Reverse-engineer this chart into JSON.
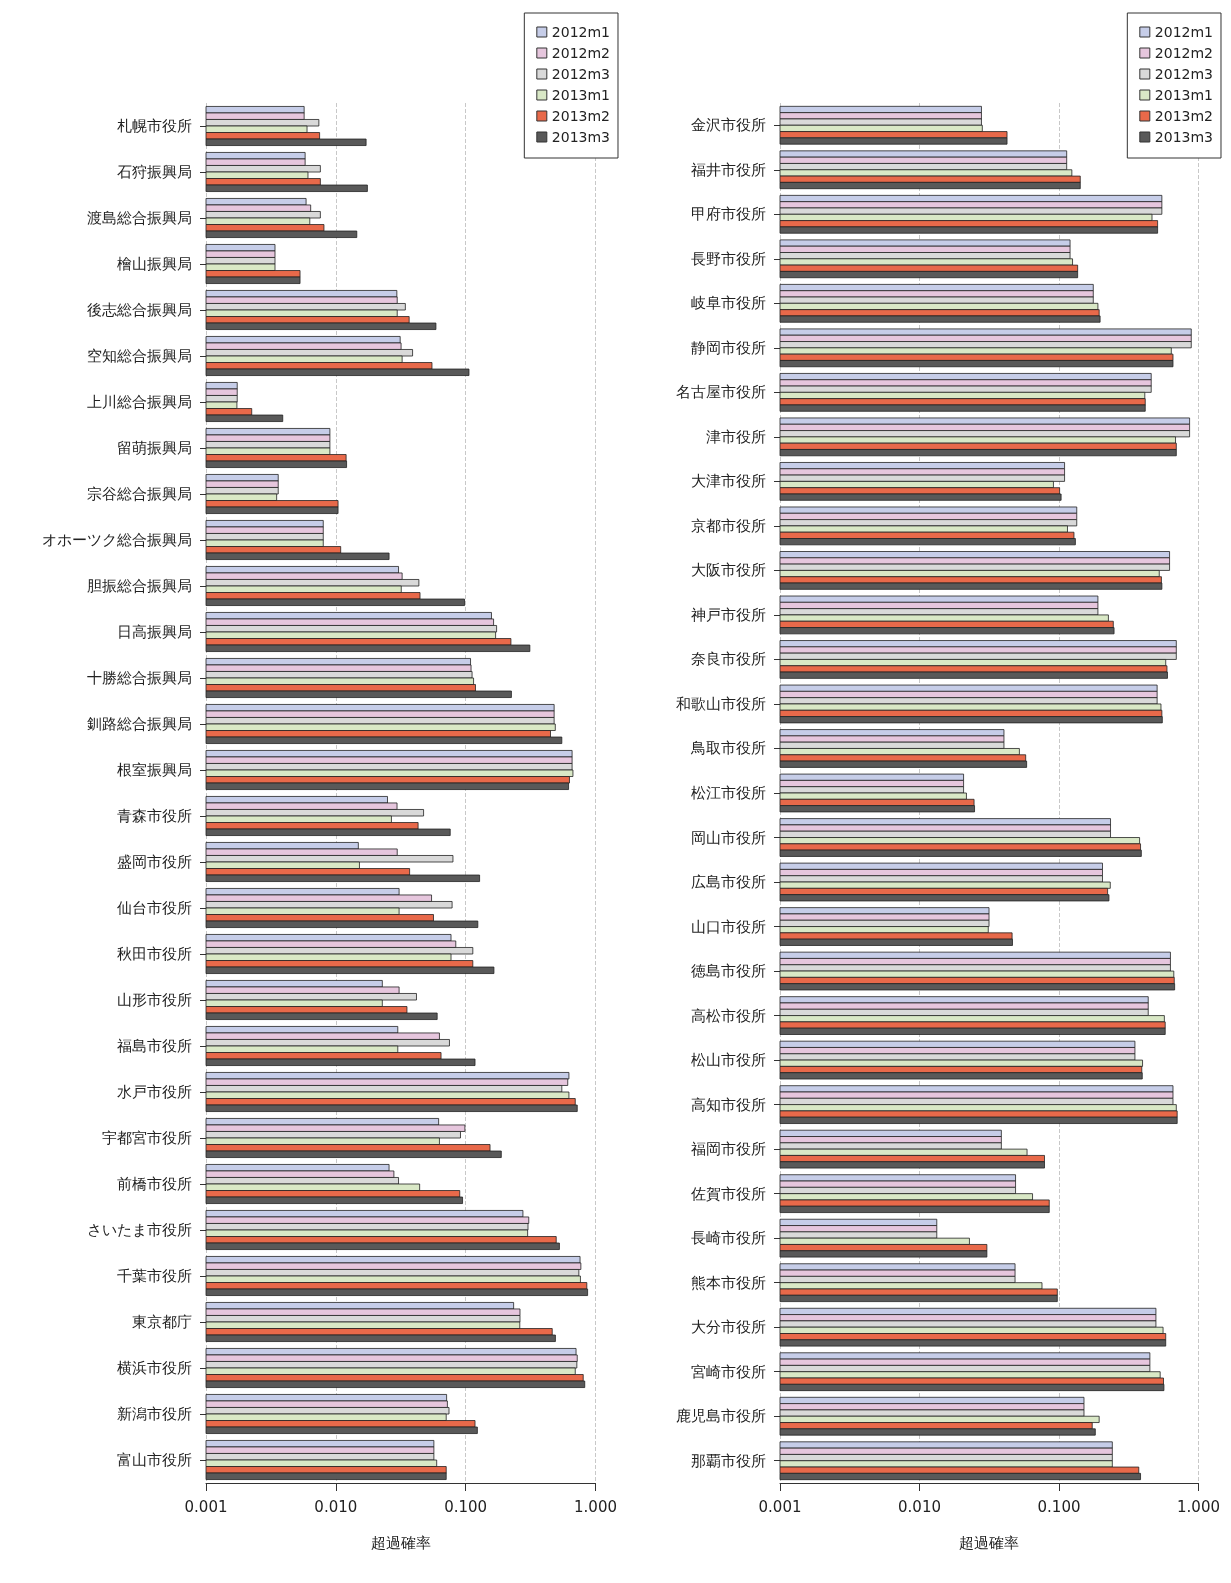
{
  "chart_data": [
    {
      "type": "bar",
      "orientation": "horizontal",
      "log": "x",
      "grid": "x",
      "legend": "top right",
      "xlabel": "超過確率",
      "xlim": [
        0.001,
        1
      ],
      "xticks": [
        0.001,
        {
          "value": 0.01,
          "label": "0.010"
        },
        {
          "value": 0.1,
          "label": "0.100"
        },
        {
          "value": 1,
          "label": "1.000"
        }
      ],
      "categories": [
        "札幌市役所",
        "石狩振興局",
        "渡島総合振興局",
        "檜山振興局",
        "後志総合振興局",
        "空知総合振興局",
        "上川総合振興局",
        "留萌振興局",
        "宗谷総合振興局",
        "オホーツク総合振興局",
        "胆振総合振興局",
        "日高振興局",
        "十勝総合振興局",
        "釧路総合振興局",
        "根室振興局",
        "青森市役所",
        "盛岡市役所",
        "仙台市役所",
        "秋田市役所",
        "山形市役所",
        "福島市役所",
        "水戸市役所",
        "宇都宮市役所",
        "前橋市役所",
        "さいたま市役所",
        "千葉市役所",
        "東京都庁",
        "横浜市役所",
        "新潟市役所",
        "富山市役所"
      ],
      "series": [
        {
          "name": "2012m1",
          "color": "#c6cde8",
          "values": [
            0.0057,
            0.0058,
            0.0059,
            0.0034,
            0.0295,
            0.0313,
            0.00174,
            0.009,
            0.0036,
            0.008,
            0.0304,
            0.158,
            0.109,
            0.48,
            0.66,
            0.025,
            0.0149,
            0.0307,
            0.0771,
            0.0228,
            0.03,
            0.624,
            0.0619,
            0.0257,
            0.276,
            0.76,
            0.234,
            0.708,
            0.0713,
            0.0569
          ]
        },
        {
          "name": "2012m2",
          "color": "#e6c6dd",
          "values": [
            0.0057,
            0.0058,
            0.0064,
            0.0034,
            0.0297,
            0.0318,
            0.00174,
            0.009,
            0.0036,
            0.008,
            0.0324,
            0.164,
            0.11,
            0.48,
            0.66,
            0.0296,
            0.0297,
            0.0546,
            0.0839,
            0.0307,
            0.0628,
            0.611,
            0.0986,
            0.028,
            0.306,
            0.771,
            0.262,
            0.723,
            0.0723,
            0.0569
          ]
        },
        {
          "name": "2012m3",
          "color": "#d9d9d9",
          "values": [
            0.0074,
            0.0076,
            0.0076,
            0.0034,
            0.0343,
            0.039,
            0.00174,
            0.009,
            0.0036,
            0.008,
            0.0436,
            0.173,
            0.112,
            0.48,
            0.66,
            0.0474,
            0.0798,
            0.0786,
            0.1135,
            0.0418,
            0.075,
            0.55,
            0.0912,
            0.0304,
            0.302,
            0.744,
            0.262,
            0.718,
            0.0744,
            0.0569
          ]
        },
        {
          "name": "2013m1",
          "color": "#d9e8c6",
          "values": [
            0.006,
            0.0061,
            0.0063,
            0.0034,
            0.0297,
            0.0324,
            0.00173,
            0.009,
            0.0035,
            0.008,
            0.0319,
            0.17,
            0.115,
            0.49,
            0.67,
            0.0268,
            0.0152,
            0.0307,
            0.0771,
            0.0228,
            0.03,
            0.624,
            0.0628,
            0.0442,
            0.3,
            0.765,
            0.261,
            0.698,
            0.0708,
            0.0598
          ]
        },
        {
          "name": "2013m2",
          "color": "#e8694a",
          "values": [
            0.0075,
            0.0076,
            0.0081,
            0.0053,
            0.0367,
            0.055,
            0.00225,
            0.012,
            0.0104,
            0.0109,
            0.0445,
            0.223,
            0.119,
            0.45,
            0.63,
            0.043,
            0.037,
            0.0565,
            0.1135,
            0.0353,
            0.0646,
            0.698,
            0.154,
            0.09,
            0.498,
            0.857,
            0.464,
            0.804,
            0.118,
            0.0708
          ]
        },
        {
          "name": "2013m3",
          "color": "#595959",
          "values": [
            0.0171,
            0.0175,
            0.0145,
            0.0053,
            0.059,
            0.106,
            0.0039,
            0.0121,
            0.0104,
            0.0257,
            0.098,
            0.312,
            0.225,
            0.55,
            0.62,
            0.076,
            0.128,
            0.124,
            0.165,
            0.0603,
            0.118,
            0.723,
            0.188,
            0.0946,
            0.527,
            0.869,
            0.491,
            0.826,
            0.123,
            0.0708
          ]
        }
      ]
    },
    {
      "type": "bar",
      "orientation": "horizontal",
      "log": "x",
      "grid": "x",
      "legend": "top right",
      "xlabel": "超過確率",
      "xlim": [
        0.001,
        1
      ],
      "xticks": [
        0.001,
        {
          "value": 0.01,
          "label": "0.010"
        },
        {
          "value": 0.1,
          "label": "0.100"
        },
        {
          "value": 1,
          "label": "1.000"
        }
      ],
      "categories": [
        "金沢市役所",
        "福井市役所",
        "甲府市役所",
        "長野市役所",
        "岐阜市役所",
        "静岡市役所",
        "名古屋市役所",
        "津市役所",
        "大津市役所",
        "京都市役所",
        "大阪市役所",
        "神戸市役所",
        "奈良市役所",
        "和歌山市役所",
        "鳥取市役所",
        "松江市役所",
        "岡山市役所",
        "広島市役所",
        "山口市役所",
        "徳島市役所",
        "高松市役所",
        "松山市役所",
        "高知市役所",
        "福岡市役所",
        "佐賀市役所",
        "長崎市役所",
        "熊本市役所",
        "大分市役所",
        "宮崎市役所",
        "鹿児島市役所",
        "那覇市役所"
      ],
      "series": [
        {
          "name": "2012m1",
          "color": "#c6cde8",
          "values": [
            0.0278,
            0.1135,
            0.546,
            0.12,
            0.176,
            0.887,
            0.458,
            0.863,
            0.1096,
            0.134,
            0.62,
            0.19,
            0.693,
            0.505,
            0.0403,
            0.0207,
            0.234,
            0.205,
            0.0315,
            0.629,
            0.436,
            0.35,
            0.656,
            0.0386,
            0.0488,
            0.0133,
            0.0484,
            0.495,
            0.448,
            0.151,
            0.241
          ]
        },
        {
          "name": "2012m2",
          "color": "#e6c6dd",
          "values": [
            0.0278,
            0.1135,
            0.546,
            0.12,
            0.176,
            0.887,
            0.458,
            0.863,
            0.1096,
            0.134,
            0.62,
            0.19,
            0.693,
            0.505,
            0.0403,
            0.0207,
            0.234,
            0.205,
            0.0315,
            0.629,
            0.436,
            0.35,
            0.656,
            0.0386,
            0.0488,
            0.0133,
            0.0484,
            0.495,
            0.448,
            0.151,
            0.241
          ]
        },
        {
          "name": "2012m3",
          "color": "#d9d9d9",
          "values": [
            0.0278,
            0.1135,
            0.546,
            0.12,
            0.176,
            0.887,
            0.458,
            0.863,
            0.1096,
            0.134,
            0.62,
            0.19,
            0.693,
            0.505,
            0.0403,
            0.0207,
            0.234,
            0.205,
            0.0315,
            0.629,
            0.436,
            0.35,
            0.656,
            0.0386,
            0.0488,
            0.0133,
            0.0484,
            0.495,
            0.448,
            0.151,
            0.241
          ]
        },
        {
          "name": "2013m1",
          "color": "#d9e8c6",
          "values": [
            0.0282,
            0.1236,
            0.464,
            0.125,
            0.19,
            0.638,
            0.412,
            0.684,
            0.0912,
            0.115,
            0.523,
            0.226,
            0.582,
            0.538,
            0.052,
            0.0217,
            0.378,
            0.233,
            0.0311,
            0.665,
            0.569,
            0.397,
            0.693,
            0.059,
            0.0646,
            0.0228,
            0.0755,
            0.557,
            0.531,
            0.194,
            0.241
          ]
        },
        {
          "name": "2013m2",
          "color": "#e8694a",
          "values": [
            0.0424,
            0.142,
            0.509,
            0.136,
            0.194,
            0.656,
            0.415,
            0.693,
            0.101,
            0.128,
            0.542,
            0.245,
            0.594,
            0.546,
            0.0577,
            0.0246,
            0.384,
            0.223,
            0.0461,
            0.67,
            0.577,
            0.392,
            0.703,
            0.0787,
            0.0851,
            0.0304,
            0.0972,
            0.582,
            0.561,
            0.173,
            0.373
          ]
        },
        {
          "name": "2013m3",
          "color": "#595959",
          "values": [
            0.0424,
            0.142,
            0.509,
            0.136,
            0.197,
            0.656,
            0.415,
            0.693,
            0.1035,
            0.131,
            0.546,
            0.248,
            0.599,
            0.55,
            0.0586,
            0.0248,
            0.389,
            0.228,
            0.0464,
            0.674,
            0.577,
            0.395,
            0.703,
            0.0787,
            0.0851,
            0.0304,
            0.0972,
            0.582,
            0.565,
            0.182,
            0.384
          ]
        }
      ]
    }
  ]
}
